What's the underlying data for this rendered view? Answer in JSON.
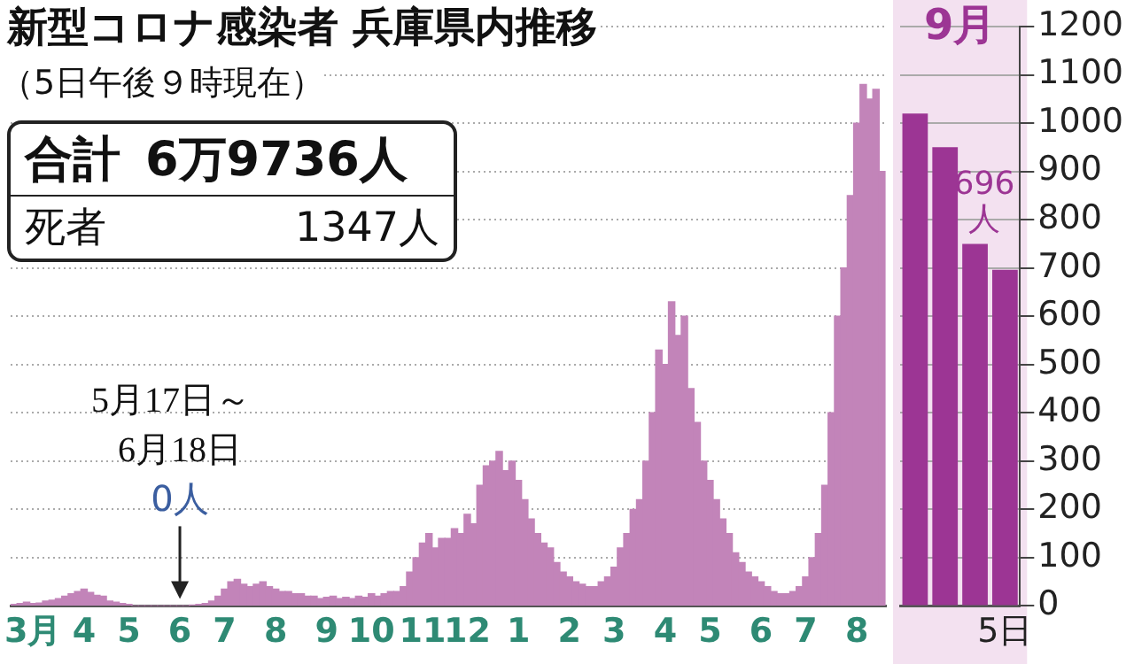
{
  "chart_data": [
    {
      "type": "bar",
      "title": "新型コロナ感染者 兵庫県内推移",
      "subtitle": "（5日午後９時現在）",
      "annotations": [
        "合計 6万9736人",
        "死者 1347人",
        {
          "text": "5月17日～\n6月18日\n0人",
          "x": "6",
          "y": 0
        }
      ],
      "categories": [
        null,
        null,
        null,
        "3月",
        null,
        null,
        null,
        null,
        null,
        null,
        null,
        "4",
        null,
        null,
        null,
        null,
        null,
        null,
        "5",
        null,
        null,
        null,
        null,
        null,
        null,
        null,
        "6",
        null,
        null,
        null,
        null,
        null,
        null,
        "7",
        null,
        null,
        null,
        null,
        null,
        null,
        null,
        "8",
        null,
        null,
        null,
        null,
        null,
        null,
        null,
        "9",
        null,
        null,
        null,
        null,
        null,
        null,
        "10",
        null,
        null,
        null,
        null,
        null,
        null,
        null,
        "11",
        null,
        null,
        null,
        null,
        null,
        null,
        "12",
        null,
        null,
        null,
        null,
        null,
        null,
        null,
        "1",
        null,
        null,
        null,
        null,
        null,
        null,
        null,
        "2",
        null,
        null,
        null,
        null,
        null,
        null,
        "3",
        null,
        null,
        null,
        null,
        null,
        null,
        null,
        "4",
        null,
        null,
        null,
        null,
        null,
        null,
        "5",
        null,
        null,
        null,
        null,
        null,
        null,
        null,
        "6",
        null,
        null,
        null,
        null,
        null,
        null,
        "7",
        null,
        null,
        null,
        null,
        null,
        null,
        null,
        "8",
        null,
        null,
        null,
        null
      ],
      "values": [
        3,
        5,
        8,
        5,
        6,
        10,
        12,
        15,
        20,
        25,
        30,
        35,
        28,
        22,
        20,
        10,
        8,
        5,
        3,
        0,
        0,
        0,
        0,
        0,
        0,
        0,
        0,
        0,
        2,
        3,
        5,
        10,
        20,
        35,
        50,
        55,
        45,
        40,
        45,
        50,
        40,
        35,
        30,
        30,
        25,
        25,
        20,
        20,
        15,
        18,
        20,
        15,
        18,
        15,
        20,
        18,
        25,
        20,
        25,
        30,
        30,
        40,
        70,
        100,
        130,
        150,
        120,
        140,
        140,
        160,
        150,
        190,
        170,
        250,
        290,
        300,
        320,
        280,
        300,
        260,
        220,
        180,
        150,
        130,
        120,
        90,
        70,
        60,
        50,
        45,
        40,
        40,
        50,
        60,
        80,
        120,
        150,
        200,
        220,
        300,
        400,
        530,
        500,
        630,
        560,
        600,
        450,
        380,
        300,
        260,
        220,
        180,
        150,
        110,
        90,
        70,
        60,
        50,
        40,
        30,
        25,
        25,
        30,
        40,
        60,
        100,
        150,
        250,
        400,
        600,
        700,
        850,
        1000,
        1080,
        1050,
        1070,
        900
      ],
      "color": "#c284b9",
      "ylim": [
        0,
        1200
      ],
      "yticks": [
        0,
        100,
        200,
        300,
        400,
        500,
        600,
        700,
        800,
        900,
        1000,
        1100,
        1200
      ],
      "grid": "y",
      "tick_labels": "x"
    },
    {
      "type": "bar",
      "title": "9月",
      "categories": [
        null,
        null,
        null,
        "5日"
      ],
      "values": [
        1020,
        950,
        750,
        696
      ],
      "value_labels": [
        null,
        null,
        null,
        "696人"
      ],
      "color": "#9c3594",
      "ylim": [
        0,
        1200
      ],
      "yticks": [
        0,
        100,
        200,
        300,
        400,
        500,
        600,
        700,
        800,
        900,
        1000,
        1100,
        1200
      ],
      "grid": "y"
    }
  ]
}
